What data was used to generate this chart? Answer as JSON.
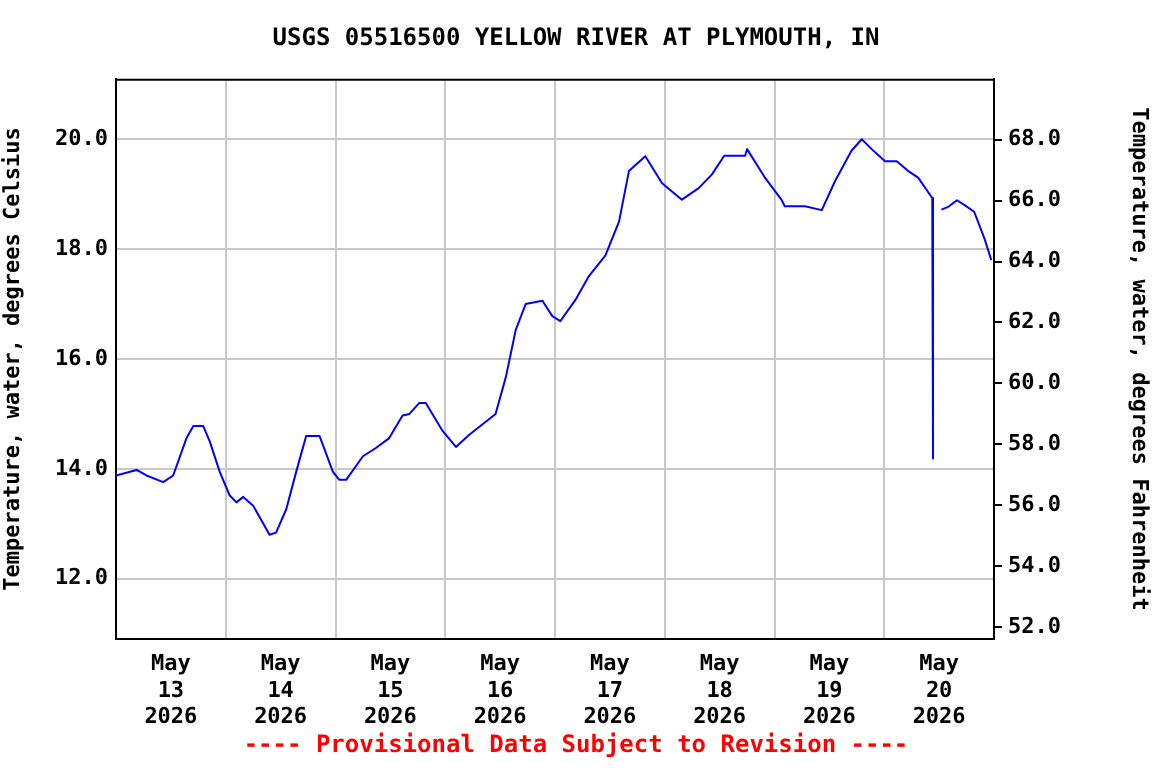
{
  "chart_data": {
    "type": "line",
    "title": "USGS 05516500 YELLOW RIVER AT PLYMOUTH, IN",
    "ylabel": "Temperature, water, degrees Celsius",
    "y2label": "Temperature, water, degrees Fahrenheit",
    "annotations": [
      "---- Provisional Data Subject to Revision ----"
    ],
    "x": [
      "2026-05-13T00:00",
      "2026-05-13T04:30",
      "2026-05-13T06:40",
      "2026-05-13T10:20",
      "2026-05-13T12:30",
      "2026-05-13T15:25",
      "2026-05-13T16:55",
      "2026-05-13T19:05",
      "2026-05-13T20:30",
      "2026-05-13T22:40",
      "2026-05-14T00:50",
      "2026-05-14T02:20",
      "2026-05-14T03:50",
      "2026-05-14T06:00",
      "2026-05-14T09:35",
      "2026-05-14T11:00",
      "2026-05-14T13:15",
      "2026-05-14T15:25",
      "2026-05-14T17:35",
      "2026-05-14T20:30",
      "2026-05-14T23:25",
      "2026-05-15T00:50",
      "2026-05-15T02:20",
      "2026-05-15T06:00",
      "2026-05-15T08:50",
      "2026-05-15T11:45",
      "2026-05-15T14:40",
      "2026-05-15T16:10",
      "2026-05-15T18:20",
      "2026-05-15T19:45",
      "2026-05-15T23:25",
      "2026-05-16T02:20",
      "2026-05-16T05:15",
      "2026-05-16T11:00",
      "2026-05-16T13:15",
      "2026-05-16T15:25",
      "2026-05-16T17:35",
      "2026-05-16T21:15",
      "2026-05-16T23:25",
      "2026-05-17T01:10",
      "2026-05-17T04:30",
      "2026-05-17T07:25",
      "2026-05-17T11:00",
      "2026-05-17T14:00",
      "2026-05-17T16:10",
      "2026-05-17T19:45",
      "2026-05-17T23:25",
      "2026-05-18T03:45",
      "2026-05-18T07:25",
      "2026-05-18T10:20",
      "2026-05-18T13:00",
      "2026-05-18T17:35",
      "2026-05-18T18:00",
      "2026-05-18T21:55",
      "2026-05-19T01:35",
      "2026-05-19T02:15",
      "2026-05-19T06:40",
      "2026-05-19T10:20",
      "2026-05-19T13:15",
      "2026-05-19T16:50",
      "2026-05-19T19:05",
      "2026-05-19T21:15",
      "2026-05-20T00:10",
      "2026-05-20T02:45",
      "2026-05-20T05:15",
      "2026-05-20T07:25",
      "2026-05-20T10:00",
      "2026-05-20T10:30",
      "2026-05-20T10:35",
      "2026-05-20T10:45",
      "2026-05-20T11:30",
      "2026-05-20T12:30",
      "2026-05-20T14:00",
      "2026-05-20T15:55",
      "2026-05-20T17:35",
      "2026-05-20T19:40",
      "2026-05-20T21:55",
      "2026-05-20T23:25"
    ],
    "series": [
      {
        "color": "#0000ff",
        "values": [
          13.88,
          13.98,
          13.88,
          13.76,
          13.88,
          14.56,
          14.78,
          14.78,
          14.5,
          13.95,
          13.52,
          13.39,
          13.49,
          13.33,
          12.8,
          12.84,
          13.27,
          13.95,
          14.6,
          14.6,
          13.95,
          13.8,
          13.8,
          14.23,
          14.38,
          14.56,
          14.97,
          15.0,
          15.2,
          15.2,
          14.69,
          14.4,
          14.62,
          15.0,
          15.67,
          16.53,
          17.0,
          17.06,
          16.78,
          16.69,
          17.08,
          17.51,
          17.88,
          18.5,
          19.42,
          19.69,
          19.2,
          18.9,
          19.11,
          19.36,
          19.7,
          19.7,
          19.82,
          19.3,
          18.89,
          18.78,
          18.78,
          18.71,
          19.24,
          19.79,
          20.0,
          19.82,
          19.6,
          19.6,
          19.42,
          19.3,
          18.99,
          18.93,
          14.19,
          14.87,
          null,
          18.72,
          18.77,
          18.89,
          18.8,
          18.68,
          18.19,
          17.8
        ]
      }
    ],
    "xlim": [
      "2026-05-13",
      "2026-05-21"
    ],
    "xticks": [
      {
        "value": "2026-05-13T12:00",
        "label": "May\n13\n2026"
      },
      {
        "value": "2026-05-14",
        "label": null
      },
      {
        "value": "2026-05-14T12:00",
        "label": "May\n14\n2026"
      },
      {
        "value": "2026-05-15",
        "label": null
      },
      {
        "value": "2026-05-15T12:00",
        "label": "May\n15\n2026"
      },
      {
        "value": "2026-05-16",
        "label": null
      },
      {
        "value": "2026-05-16T12:00",
        "label": "May\n16\n2026"
      },
      {
        "value": "2026-05-17",
        "label": null
      },
      {
        "value": "2026-05-17T12:00",
        "label": "May\n17\n2026"
      },
      {
        "value": "2026-05-18",
        "label": null
      },
      {
        "value": "2026-05-18T12:00",
        "label": "May\n18\n2026"
      },
      {
        "value": "2026-05-19",
        "label": null
      },
      {
        "value": "2026-05-19T12:00",
        "label": "May\n19\n2026"
      },
      {
        "value": "2026-05-20",
        "label": null
      },
      {
        "value": "2026-05-20T12:00",
        "label": "May\n20\n2026"
      }
    ],
    "ylim": [
      10.9,
      21.1
    ],
    "yticks": [
      {
        "value": 12,
        "label": "12.0"
      },
      {
        "value": 14,
        "label": "14.0"
      },
      {
        "value": 16,
        "label": "16.0"
      },
      {
        "value": 18,
        "label": "18.0"
      },
      {
        "value": 20,
        "label": "20.0"
      }
    ],
    "y2lim": [
      51.6,
      70.0
    ],
    "y2ticks": [
      {
        "value": 52,
        "label": "52.0"
      },
      {
        "value": 54,
        "label": "54.0"
      },
      {
        "value": 56,
        "label": "56.0"
      },
      {
        "value": 58,
        "label": "58.0"
      },
      {
        "value": 60,
        "label": "60.0"
      },
      {
        "value": 62,
        "label": "62.0"
      },
      {
        "value": 64,
        "label": "64.0"
      },
      {
        "value": 66,
        "label": "66.0"
      },
      {
        "value": 68,
        "label": "68.0"
      }
    ],
    "grid": true,
    "legend": false,
    "marker": "none",
    "line_style": "solid"
  }
}
